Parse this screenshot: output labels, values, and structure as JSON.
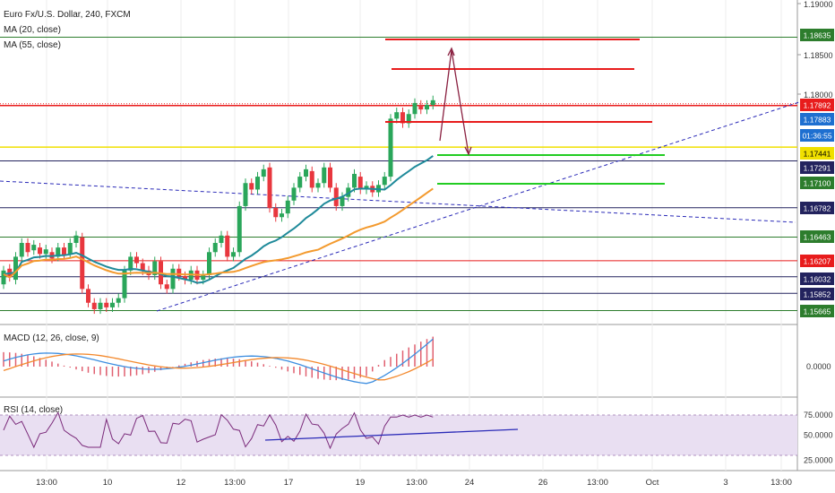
{
  "header": {
    "title": "Euro Fx/U.S. Dollar, 240, FXCM",
    "ma20": "MA (20, close)",
    "ma55": "MA (55, close)"
  },
  "macd_label": "MACD (12, 26, close, 9)",
  "rsi_label": "RSI (14, close)",
  "time_labels": [
    "13:00",
    "10",
    "12",
    "13:00",
    "17",
    "19",
    "13:00",
    "24",
    "26",
    "13:00",
    "Oct",
    "3",
    "13:00"
  ],
  "colors": {
    "up": "#2aa65a",
    "down": "#e8373e",
    "ma20": "#1f8a9a",
    "ma55": "#f39a2e",
    "red_line": "#e81c1c",
    "green_line": "#22cc22",
    "navy_line": "#23235e",
    "yellow": "#f0e000",
    "trend": "#2b2bb8",
    "grid": "#eeeeee",
    "macd": "#3d8ee0",
    "signal": "#f3892d",
    "hist": "#e06070",
    "rsi": "#7a2a7a",
    "rsi_band": "#e9dff2"
  },
  "chart_data": [
    {
      "type": "line",
      "title": "Euro Fx/U.S. Dollar, 240, FXCM",
      "series": [
        {
          "name": "MA (20, close)"
        },
        {
          "name": "MA (55, close)"
        }
      ],
      "price_axis_ticks": [
        1.19,
        1.185,
        1.18,
        1.1744,
        1.171,
        1.1678,
        1.1646,
        1.162,
        1.1603,
        1.1585,
        1.1566
      ],
      "level_labels": [
        {
          "value": "1.18635",
          "color": "#2d7d2d"
        },
        {
          "value": "1.17892",
          "color": "#e81c1c"
        },
        {
          "value": "1.17883",
          "color": "#1e6fd0"
        },
        {
          "value": "01:36:55",
          "color": "#1e6fd0"
        },
        {
          "value": "1.17441",
          "color": "#f0e000"
        },
        {
          "value": "1.17291",
          "color": "#23235e"
        },
        {
          "value": "1.17100",
          "color": "#2d7d2d"
        },
        {
          "value": "1.16782",
          "color": "#23235e"
        },
        {
          "value": "1.16463",
          "color": "#2d7d2d"
        },
        {
          "value": "1.16207",
          "color": "#e81c1c"
        },
        {
          "value": "1.16032",
          "color": "#23235e"
        },
        {
          "value": "1.15852",
          "color": "#23235e"
        },
        {
          "value": "1.15665",
          "color": "#2d7d2d"
        }
      ],
      "axis_labels": [
        "1.19000",
        "1.18500",
        "1.18000"
      ]
    },
    {
      "type": "line",
      "title": "MACD (12, 26, close, 9)",
      "axis_labels": [
        "0.0000"
      ]
    },
    {
      "type": "line",
      "title": "RSI (14, close)",
      "axis_labels": [
        "75.0000",
        "50.0000",
        "25.0000"
      ],
      "band": [
        30,
        70
      ]
    }
  ]
}
